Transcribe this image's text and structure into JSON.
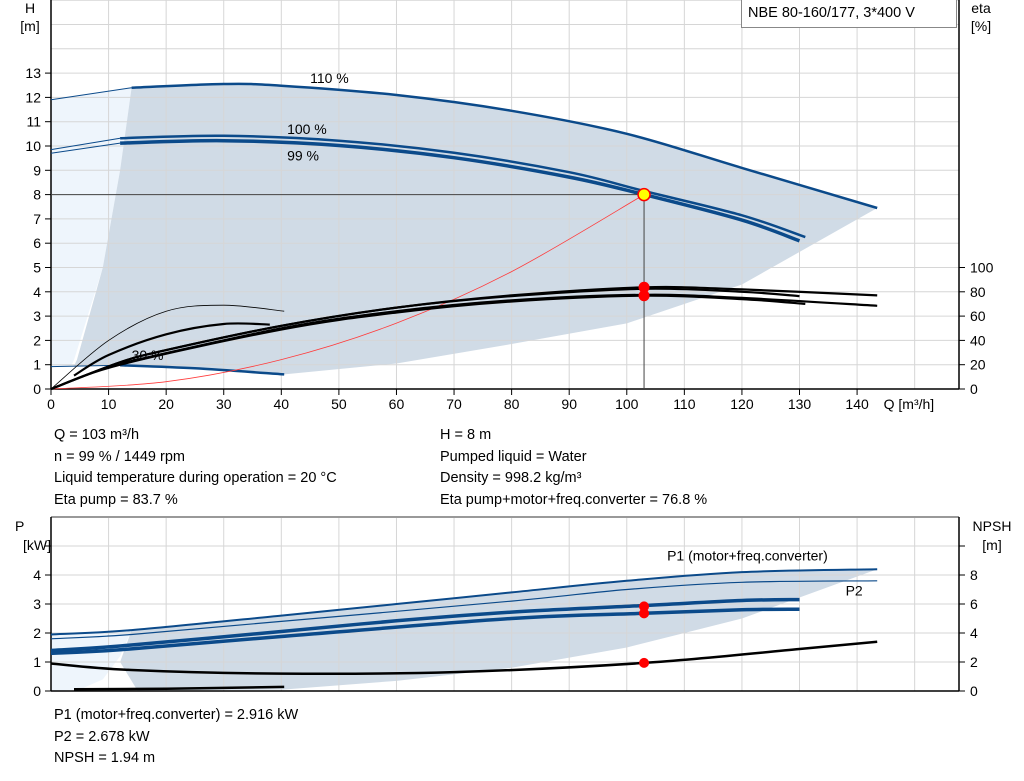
{
  "title": "NBE 80-160/177, 3*400 V",
  "colors": {
    "curve_blue": "#0b4a8a",
    "shade": "#d0dbe6",
    "shade_light": "#eef5fc",
    "grid": "#d6d6d6",
    "system": "#ff3b3b",
    "duty_fill": "#ffff00",
    "duty_marker": "#ff0000"
  },
  "info_top_left": [
    "Q = 103 m³/h",
    "n = 99 % / 1449 rpm",
    "Liquid temperature during operation = 20 °C",
    "Eta pump = 83.7 %"
  ],
  "info_top_right": [
    "H = 8 m",
    "Pumped liquid = Water",
    "Density = 998.2 kg/m³",
    "Eta pump+motor+freq.converter = 76.8 %"
  ],
  "info_bottom": [
    "P1 (motor+freq.converter) = 2.916 kW",
    "P2 = 2.678 kW",
    "NPSH = 1.94 m"
  ],
  "chart_data": [
    {
      "type": "line",
      "xlabel": "Q [m³/h]",
      "ylabel": "H\n[m]",
      "y2label": "eta\n[%]",
      "xticks": [
        0,
        10,
        20,
        30,
        40,
        50,
        60,
        70,
        80,
        90,
        100,
        110,
        120,
        130,
        140
      ],
      "yticks": [
        0,
        1,
        2,
        3,
        4,
        5,
        6,
        7,
        8,
        9,
        10,
        11,
        12,
        13
      ],
      "y2ticks": [
        0,
        20,
        40,
        60,
        80,
        100
      ],
      "xlim": [
        0,
        157.7
      ],
      "ylim": [
        0,
        16
      ],
      "y2lim": [
        0,
        320
      ],
      "grid": true,
      "curve_labels": [
        {
          "text": "110 %",
          "x": 45,
          "y": 12.6
        },
        {
          "text": "100 %",
          "x": 41,
          "y": 10.5
        },
        {
          "text": "99 %",
          "x": 41,
          "y": 10.3
        },
        {
          "text": "30 %",
          "x": 14,
          "y": 1.2
        }
      ],
      "head_curves": [
        {
          "name": "110 %",
          "points": [
            [
              0,
              11.9
            ],
            [
              14,
              12.4
            ],
            [
              30,
              12.55
            ],
            [
              40,
              12.48
            ],
            [
              60,
              12.1
            ],
            [
              80,
              11.45
            ],
            [
              100,
              10.5
            ],
            [
              120,
              9.1
            ],
            [
              143.5,
              7.45
            ]
          ]
        },
        {
          "name": "100 %",
          "points": [
            [
              0,
              9.85
            ],
            [
              12,
              10.32
            ],
            [
              30,
              10.42
            ],
            [
              50,
              10.22
            ],
            [
              70,
              9.72
            ],
            [
              90,
              8.92
            ],
            [
              103,
              8.15
            ],
            [
              120,
              7.15
            ],
            [
              131,
              6.25
            ]
          ]
        },
        {
          "name": "99 %",
          "points": [
            [
              0,
              9.7
            ],
            [
              12,
              10.12
            ],
            [
              30,
              10.22
            ],
            [
              50,
              10.02
            ],
            [
              70,
              9.52
            ],
            [
              90,
              8.72
            ],
            [
              103,
              8.0
            ],
            [
              120,
              6.95
            ],
            [
              130,
              6.1
            ]
          ]
        },
        {
          "name": "30 %",
          "points": [
            [
              0,
              0.92
            ],
            [
              12,
              0.98
            ],
            [
              25,
              0.85
            ],
            [
              40.5,
              0.6
            ]
          ]
        }
      ],
      "system_curve": {
        "points": [
          [
            0,
            0
          ],
          [
            20,
            0.3
          ],
          [
            40,
            1.21
          ],
          [
            60,
            2.71
          ],
          [
            80,
            4.83
          ],
          [
            103,
            8.0
          ]
        ]
      },
      "eta_curves": [
        {
          "points": [
            [
              0,
              0
            ],
            [
              10,
              40
            ],
            [
              20,
              64
            ],
            [
              30,
              69
            ],
            [
              40.5,
              64
            ]
          ]
        },
        {
          "points": [
            [
              4,
              11
            ],
            [
              10,
              28
            ],
            [
              20,
              45
            ],
            [
              30,
              53.5
            ],
            [
              38,
              53
            ]
          ]
        },
        {
          "points": [
            [
              0,
              0
            ],
            [
              12,
              22
            ],
            [
              20,
              32
            ],
            [
              40,
              52
            ],
            [
              60,
              67
            ],
            [
              80,
              77
            ],
            [
              103,
              83.7
            ],
            [
              120,
              82
            ],
            [
              143.5,
              77
            ]
          ]
        },
        {
          "points": [
            [
              0,
              0
            ],
            [
              12,
              22
            ],
            [
              20,
              32
            ],
            [
              40,
              52
            ],
            [
              60,
              67
            ],
            [
              80,
              76.5
            ],
            [
              103,
              82.5
            ],
            [
              120,
              80
            ],
            [
              130,
              76.5
            ]
          ]
        },
        {
          "points": [
            [
              0,
              0
            ],
            [
              12,
              20
            ],
            [
              40,
              49
            ],
            [
              60,
              63
            ],
            [
              80,
              72
            ],
            [
              103,
              76.8
            ],
            [
              120,
              74
            ],
            [
              131,
              70
            ]
          ]
        },
        {
          "points": [
            [
              12,
              21
            ],
            [
              40,
              50
            ],
            [
              60,
              64
            ],
            [
              80,
              73
            ],
            [
              103,
              77.5
            ],
            [
              120,
              75
            ],
            [
              143.5,
              68.5
            ]
          ]
        }
      ],
      "duty_point": {
        "Q": 103,
        "H": 8,
        "eta_pump": 83.7,
        "eta_total": 76.8
      }
    },
    {
      "type": "line",
      "ylabel": "P\n[kW]",
      "y2label": "NPSH\n[m]",
      "yticks": [
        0,
        1,
        2,
        3,
        4
      ],
      "y2ticks": [
        0,
        2,
        4,
        6,
        8
      ],
      "xlim": [
        0,
        157.7
      ],
      "ylim": [
        0,
        6
      ],
      "y2lim": [
        0,
        12
      ],
      "grid": true,
      "series_labels": [
        {
          "text": "P1 (motor+freq.converter)",
          "x": 107,
          "y": 4.5
        },
        {
          "text": "P2",
          "x": 138,
          "y": 3.3
        }
      ],
      "power_curves": [
        {
          "name": "P1 (motor+freq.converter)",
          "points": [
            [
              0,
              1.95
            ],
            [
              14,
              2.1
            ],
            [
              40,
              2.6
            ],
            [
              60,
              3.0
            ],
            [
              80,
              3.4
            ],
            [
              100,
              3.8
            ],
            [
              120,
              4.1
            ],
            [
              143.5,
              4.2
            ]
          ]
        },
        {
          "name": "P2",
          "points": [
            [
              0,
              1.8
            ],
            [
              14,
              1.95
            ],
            [
              40,
              2.4
            ],
            [
              80,
              3.1
            ],
            [
              100,
              3.5
            ],
            [
              120,
              3.75
            ],
            [
              143.5,
              3.8
            ]
          ]
        },
        {
          "points": [
            [
              0,
              1.4
            ],
            [
              12,
              1.55
            ],
            [
              40,
              2.05
            ],
            [
              60,
              2.42
            ],
            [
              80,
              2.72
            ],
            [
              103,
              2.95
            ],
            [
              120,
              3.12
            ],
            [
              130,
              3.15
            ]
          ]
        },
        {
          "points": [
            [
              0,
              1.3
            ],
            [
              12,
              1.42
            ],
            [
              40,
              1.88
            ],
            [
              80,
              2.5
            ],
            [
              103,
              2.678
            ],
            [
              120,
              2.8
            ],
            [
              130,
              2.82
            ]
          ]
        },
        {
          "points": [
            [
              4,
              0.06
            ],
            [
              20,
              0.08
            ],
            [
              40.5,
              0.14
            ]
          ]
        }
      ],
      "npsh_curve": {
        "points": [
          [
            0,
            1.9
          ],
          [
            14,
            1.45
          ],
          [
            40,
            1.2
          ],
          [
            70,
            1.3
          ],
          [
            103,
            1.94
          ],
          [
            130,
            2.9
          ],
          [
            143.5,
            3.4
          ]
        ]
      },
      "duty_point": {
        "Q": 103,
        "P1": 2.916,
        "P2": 2.678,
        "NPSH": 1.94
      }
    }
  ]
}
